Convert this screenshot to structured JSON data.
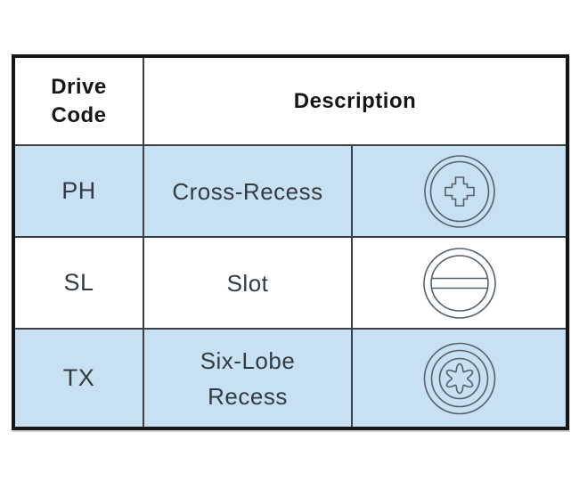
{
  "table": {
    "header": {
      "drive_code": "Drive\nCode",
      "description": "Description"
    },
    "rows": [
      {
        "code": "PH",
        "description": "Cross-Recess",
        "icon": "cross-recess-icon",
        "highlighted": true
      },
      {
        "code": "SL",
        "description": "Slot",
        "icon": "slot-icon",
        "highlighted": false
      },
      {
        "code": "TX",
        "description": "Six-Lobe\nRecess",
        "icon": "six-lobe-recess-icon",
        "highlighted": true
      }
    ]
  },
  "colors": {
    "row_highlight": "#c8e1f2",
    "grid_line": "#3a4045",
    "outer_border": "#151515",
    "icon_stroke": "#566069",
    "header_text": "#161616",
    "body_text": "#333b42"
  }
}
